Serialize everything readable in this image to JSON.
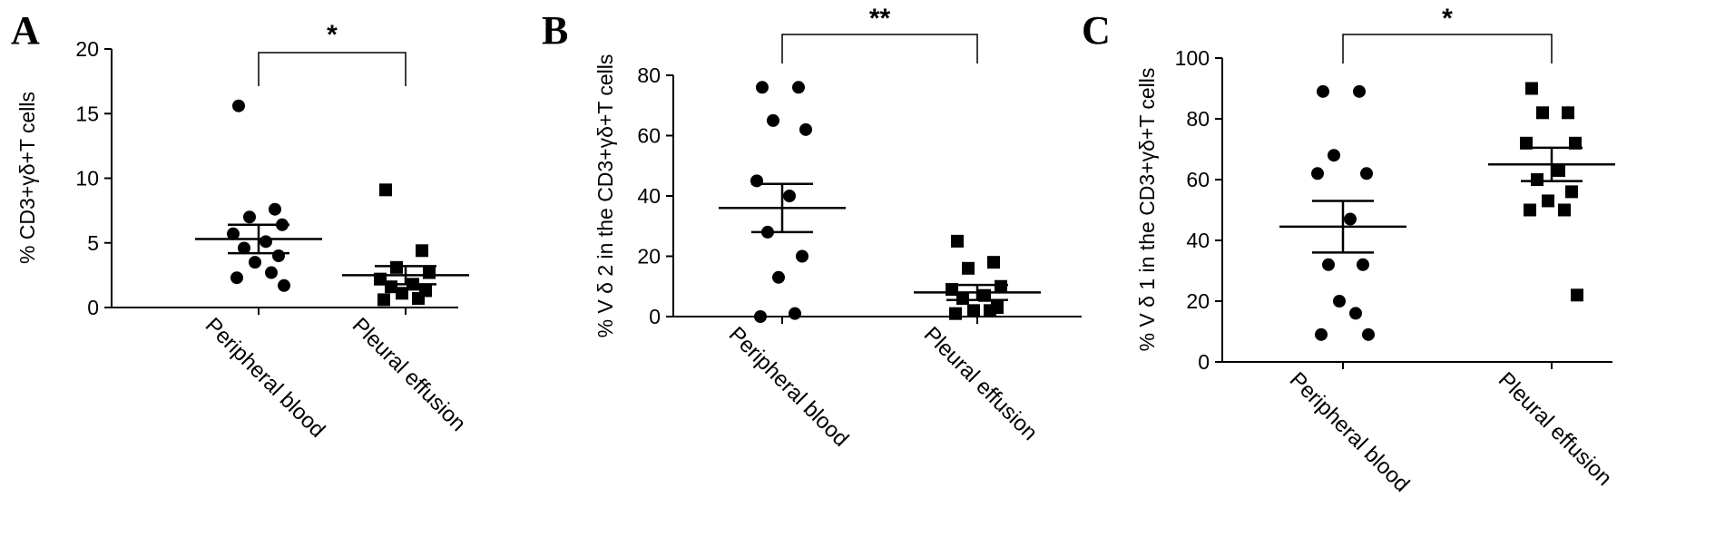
{
  "chart_data": [
    {
      "type": "scatter",
      "panel": "A",
      "ylabel": "% CD3+γδ+T cells",
      "ylim": [
        0,
        20
      ],
      "yticks": [
        0,
        5,
        10,
        15,
        20
      ],
      "categories": [
        "Peripheral blood",
        "Pleural effusion"
      ],
      "significance": "*",
      "series": [
        {
          "category": "Peripheral blood",
          "marker": "circle",
          "mean": 5.3,
          "sem_low": 4.2,
          "sem_high": 6.4,
          "values": [
            15.6,
            7.6,
            7.0,
            6.4,
            5.7,
            5.1,
            4.6,
            4.0,
            3.5,
            2.7,
            2.3,
            1.7
          ]
        },
        {
          "category": "Pleural effusion",
          "marker": "square",
          "mean": 2.5,
          "sem_low": 1.8,
          "sem_high": 3.2,
          "values": [
            9.1,
            4.4,
            3.1,
            2.7,
            2.2,
            1.8,
            1.6,
            1.3,
            1.1,
            0.7,
            0.6
          ]
        }
      ]
    },
    {
      "type": "scatter",
      "panel": "B",
      "ylabel": "% V δ 2 in the CD3+γδ+T cells",
      "ylim": [
        0,
        80
      ],
      "yticks": [
        0,
        20,
        40,
        60,
        80
      ],
      "categories": [
        "Peripheral blood",
        "Pleural effusion"
      ],
      "significance": "**",
      "series": [
        {
          "category": "Peripheral blood",
          "marker": "circle",
          "mean": 36,
          "sem_low": 28,
          "sem_high": 44,
          "values": [
            76,
            76,
            65,
            62,
            45,
            40,
            28,
            20,
            13,
            1,
            0
          ]
        },
        {
          "category": "Pleural effusion",
          "marker": "square",
          "mean": 8,
          "sem_low": 5.5,
          "sem_high": 10.5,
          "values": [
            25,
            18,
            16,
            10,
            9,
            7,
            6,
            3,
            2,
            2,
            1
          ]
        }
      ]
    },
    {
      "type": "scatter",
      "panel": "C",
      "ylabel": "% V δ 1 in the CD3+γδ+T cells",
      "ylim": [
        0,
        100
      ],
      "yticks": [
        0,
        20,
        40,
        60,
        80,
        100
      ],
      "categories": [
        "Peripheral blood",
        "Pleural effusion"
      ],
      "significance": "*",
      "series": [
        {
          "category": "Peripheral blood",
          "marker": "circle",
          "mean": 44.5,
          "sem_low": 36,
          "sem_high": 53,
          "values": [
            89,
            89,
            68,
            62,
            62,
            47,
            32,
            32,
            20,
            16,
            9,
            9
          ]
        },
        {
          "category": "Pleural effusion",
          "marker": "square",
          "mean": 65,
          "sem_low": 59.5,
          "sem_high": 70.5,
          "values": [
            90,
            82,
            82,
            72,
            72,
            63,
            60,
            56,
            53,
            50,
            50,
            22
          ]
        }
      ]
    }
  ]
}
